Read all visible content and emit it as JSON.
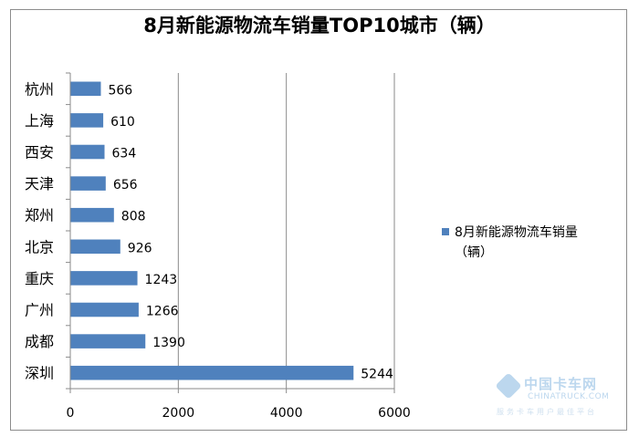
{
  "chart_data": {
    "type": "bar",
    "orientation": "horizontal",
    "title": "8月新能源物流车销量TOP10城市（辆）",
    "categories": [
      "杭州",
      "上海",
      "西安",
      "天津",
      "郑州",
      "北京",
      "重庆",
      "广州",
      "成都",
      "深圳"
    ],
    "series": [
      {
        "name": "8月新能源物流车销量（辆）",
        "legend_lines": [
          "8月新能源物流车销量",
          "（辆）"
        ],
        "values": [
          566,
          610,
          634,
          656,
          808,
          926,
          1243,
          1266,
          1390,
          5244
        ],
        "color": "#4f81bd"
      }
    ],
    "xlim": [
      0,
      6000
    ],
    "xticks": [
      0,
      2000,
      4000,
      6000
    ],
    "grid": "vertical",
    "legend_position": "right"
  },
  "watermark": {
    "name_cn": "中国卡车网",
    "name_en": "CHINATRUCK",
    "domain_suffix": ".COM",
    "tagline": "服务卡车用户最佳平台"
  }
}
